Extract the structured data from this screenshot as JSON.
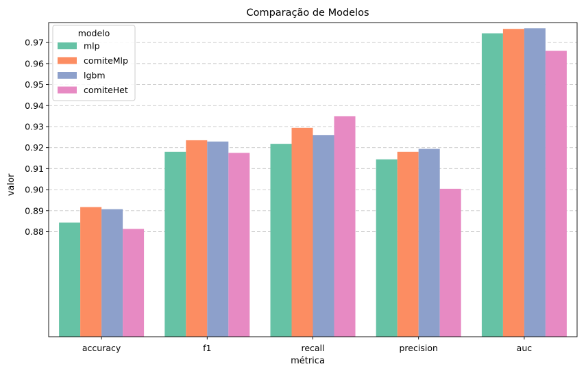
{
  "chart_data": {
    "type": "bar",
    "title": "Comparação de Modelos",
    "xlabel": "métrica",
    "ylabel": "valor",
    "categories": [
      "accuracy",
      "f1",
      "recall",
      "precision",
      "auc"
    ],
    "series": [
      {
        "name": "mlp",
        "color": "#66c2a5",
        "values": [
          0.8843,
          0.918,
          0.9218,
          0.9144,
          0.9744
        ]
      },
      {
        "name": "comiteMlp",
        "color": "#fc8d62",
        "values": [
          0.8917,
          0.9235,
          0.9294,
          0.918,
          0.9765
        ]
      },
      {
        "name": "lgbm",
        "color": "#8da0cb",
        "values": [
          0.8907,
          0.9229,
          0.926,
          0.9194,
          0.9768
        ]
      },
      {
        "name": "comiteHet",
        "color": "#e78ac3",
        "values": [
          0.8813,
          0.9175,
          0.9349,
          0.9004,
          0.9661
        ]
      }
    ],
    "ylim": [
      0.83,
      0.9795
    ],
    "yticks": [
      "0.88",
      "0.89",
      "0.90",
      "0.91",
      "0.92",
      "0.93",
      "0.94",
      "0.95",
      "0.96",
      "0.97"
    ],
    "grid": "horizontal dashed",
    "legend": {
      "title": "modelo",
      "placement": "top-left"
    }
  }
}
